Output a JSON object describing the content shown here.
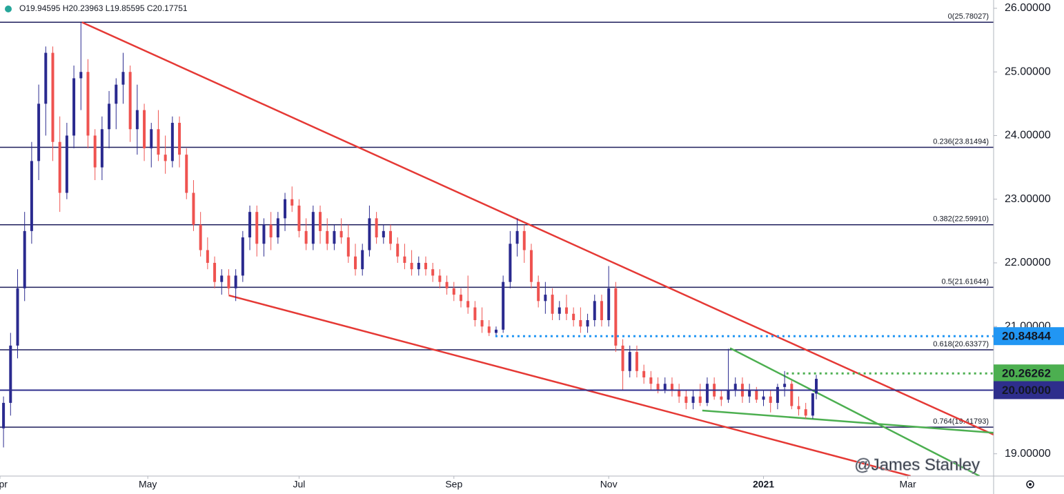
{
  "chart_data": {
    "type": "candlestick",
    "header": "O19.94595 H20.23963 L19.85595 C20.17751",
    "watermark": "@James Stanley",
    "up_color": "#2a2a8f",
    "down_color": "#ef5350",
    "xlim": [
      0,
      282.4
    ],
    "ylim": [
      18.65,
      26.13
    ],
    "xticks": [
      {
        "value": 0,
        "label": "Apr"
      },
      {
        "value": 42,
        "label": "May"
      },
      {
        "value": 85,
        "label": "Jul"
      },
      {
        "value": 129,
        "label": "Sep"
      },
      {
        "value": 173,
        "label": "Nov"
      },
      {
        "value": 217,
        "label": "2021"
      },
      {
        "value": 258,
        "label": "Mar"
      }
    ],
    "yticks": [
      {
        "value": 19,
        "label": "19.00000"
      },
      {
        "value": 20,
        "label": "20.00000"
      },
      {
        "value": 21,
        "label": "21.00000"
      },
      {
        "value": 22,
        "label": "22.00000"
      },
      {
        "value": 23,
        "label": "23.00000"
      },
      {
        "value": 24,
        "label": "24.00000"
      },
      {
        "value": 25,
        "label": "25.00000"
      },
      {
        "value": 26,
        "label": "26.00000"
      }
    ],
    "fib_levels": [
      {
        "value": 25.78027,
        "label": "0(25.78027)"
      },
      {
        "value": 23.81494,
        "label": "0.236(23.81494)"
      },
      {
        "value": 22.5991,
        "label": "0.382(22.59910)"
      },
      {
        "value": 21.61644,
        "label": "0.5(21.61644)"
      },
      {
        "value": 20.63377,
        "label": "0.618(20.63377)"
      },
      {
        "value": 19.41793,
        "label": "0.764(19.41793)"
      }
    ],
    "fib_color": "#1c1c5a",
    "levels": [
      {
        "value": 20.84844,
        "label": "20.84844",
        "color": "#2196f3",
        "dotted": true,
        "start": 140.8
      },
      {
        "value": 20.26262,
        "label": "20.26262",
        "color": "#4caf50",
        "dotted": true,
        "start": 223.5
      },
      {
        "value": 20,
        "label": "20.00000",
        "color": "#2e2e8c",
        "dotted": false,
        "start": 0
      }
    ],
    "trendlines": [
      {
        "color": "#e53935",
        "points": [
          [
            23.3,
            25.78
          ],
          [
            282.4,
            19.3
          ]
        ]
      },
      {
        "color": "#e53935",
        "points": [
          [
            65,
            21.49
          ],
          [
            258.8,
            18.65
          ]
        ]
      },
      {
        "color": "#4caf50",
        "points": [
          [
            207.5,
            20.66
          ],
          [
            278.4,
            18.65
          ]
        ]
      },
      {
        "color": "#4caf50",
        "points": [
          [
            199.6,
            19.68
          ],
          [
            282.4,
            19.33
          ]
        ]
      }
    ],
    "candles": [
      [
        1,
        19.4,
        19.9,
        19.1,
        19.8
      ],
      [
        3,
        19.8,
        20.9,
        19.6,
        20.7
      ],
      [
        5,
        20.7,
        21.9,
        20.5,
        21.6
      ],
      [
        7,
        21.6,
        22.8,
        21.4,
        22.5
      ],
      [
        9,
        22.5,
        23.9,
        22.3,
        23.6
      ],
      [
        11,
        23.6,
        24.8,
        23.3,
        24.5
      ],
      [
        13,
        24.5,
        25.4,
        24.0,
        25.3
      ],
      [
        15,
        25.3,
        25.4,
        23.6,
        23.9
      ],
      [
        17,
        23.9,
        24.3,
        22.8,
        23.1
      ],
      [
        19,
        23.1,
        24.2,
        23.0,
        24.0
      ],
      [
        21,
        24.0,
        25.1,
        23.8,
        24.9
      ],
      [
        23,
        24.9,
        25.78,
        24.4,
        25.0
      ],
      [
        25,
        25.0,
        25.2,
        23.8,
        24.0
      ],
      [
        27,
        24.0,
        24.1,
        23.3,
        23.5
      ],
      [
        29,
        23.5,
        24.3,
        23.3,
        24.1
      ],
      [
        31,
        24.1,
        24.7,
        23.8,
        24.5
      ],
      [
        33,
        24.5,
        24.9,
        24.1,
        24.8
      ],
      [
        35,
        24.8,
        25.3,
        24.5,
        25.0
      ],
      [
        37,
        25.0,
        25.1,
        23.9,
        24.1
      ],
      [
        39,
        24.1,
        24.8,
        23.7,
        24.4
      ],
      [
        41,
        24.4,
        24.5,
        23.6,
        23.8
      ],
      [
        43,
        23.8,
        24.2,
        23.5,
        24.1
      ],
      [
        45,
        24.1,
        24.4,
        23.6,
        23.7
      ],
      [
        47,
        23.7,
        24.0,
        23.4,
        23.6
      ],
      [
        49,
        23.6,
        24.3,
        23.5,
        24.2
      ],
      [
        51,
        24.2,
        24.3,
        23.5,
        23.7
      ],
      [
        53,
        23.7,
        23.8,
        23.0,
        23.1
      ],
      [
        55,
        23.1,
        23.3,
        22.5,
        22.6
      ],
      [
        57,
        22.6,
        22.8,
        22.1,
        22.2
      ],
      [
        59,
        22.2,
        22.4,
        21.9,
        22.0
      ],
      [
        61,
        22.0,
        22.1,
        21.6,
        21.7
      ],
      [
        63,
        21.7,
        21.9,
        21.5,
        21.8
      ],
      [
        65,
        21.8,
        21.9,
        21.5,
        21.6
      ],
      [
        67,
        21.6,
        21.9,
        21.4,
        21.8
      ],
      [
        69,
        21.8,
        22.5,
        21.7,
        22.4
      ],
      [
        71,
        22.4,
        22.9,
        22.2,
        22.8
      ],
      [
        73,
        22.8,
        22.9,
        22.1,
        22.3
      ],
      [
        75,
        22.3,
        22.7,
        22.1,
        22.6
      ],
      [
        77,
        22.6,
        22.8,
        22.2,
        22.4
      ],
      [
        79,
        22.4,
        22.8,
        22.3,
        22.7
      ],
      [
        81,
        22.7,
        23.1,
        22.5,
        23.0
      ],
      [
        83,
        23.0,
        23.2,
        22.8,
        22.9
      ],
      [
        85,
        22.9,
        23.0,
        22.4,
        22.5
      ],
      [
        87,
        22.5,
        22.7,
        22.2,
        22.3
      ],
      [
        89,
        22.3,
        22.9,
        22.2,
        22.8
      ],
      [
        91,
        22.8,
        22.9,
        22.3,
        22.5
      ],
      [
        93,
        22.5,
        22.7,
        22.2,
        22.3
      ],
      [
        95,
        22.3,
        22.6,
        22.2,
        22.5
      ],
      [
        97,
        22.5,
        22.7,
        22.3,
        22.4
      ],
      [
        99,
        22.4,
        22.6,
        22.0,
        22.1
      ],
      [
        101,
        22.1,
        22.3,
        21.8,
        21.9
      ],
      [
        103,
        21.9,
        22.3,
        21.8,
        22.2
      ],
      [
        105,
        22.2,
        22.9,
        22.1,
        22.7
      ],
      [
        107,
        22.7,
        22.8,
        22.3,
        22.4
      ],
      [
        109,
        22.4,
        22.6,
        22.3,
        22.5
      ],
      [
        111,
        22.5,
        22.6,
        22.2,
        22.3
      ],
      [
        113,
        22.3,
        22.4,
        22.0,
        22.1
      ],
      [
        115,
        22.1,
        22.3,
        21.9,
        22.0
      ],
      [
        117,
        22.0,
        22.2,
        21.8,
        21.9
      ],
      [
        119,
        21.9,
        22.1,
        21.8,
        22.0
      ],
      [
        121,
        22.0,
        22.1,
        21.8,
        21.9
      ],
      [
        123,
        21.9,
        22.0,
        21.7,
        21.8
      ],
      [
        125,
        21.8,
        21.9,
        21.6,
        21.7
      ],
      [
        127,
        21.7,
        21.8,
        21.5,
        21.6
      ],
      [
        129,
        21.6,
        21.7,
        21.4,
        21.5
      ],
      [
        131,
        21.5,
        21.6,
        21.3,
        21.4
      ],
      [
        133,
        21.4,
        21.8,
        21.2,
        21.3
      ],
      [
        135,
        21.3,
        21.4,
        21.0,
        21.1
      ],
      [
        137,
        21.1,
        21.3,
        20.9,
        21.0
      ],
      [
        139,
        21.0,
        21.1,
        20.85,
        20.9
      ],
      [
        141,
        20.9,
        21.0,
        20.85,
        20.95
      ],
      [
        143,
        20.95,
        21.8,
        20.9,
        21.7
      ],
      [
        145,
        21.7,
        22.5,
        21.6,
        22.3
      ],
      [
        147,
        22.3,
        22.7,
        22.1,
        22.5
      ],
      [
        149,
        22.5,
        22.6,
        22.0,
        22.2
      ],
      [
        151,
        22.2,
        22.3,
        21.6,
        21.7
      ],
      [
        153,
        21.7,
        21.8,
        21.3,
        21.4
      ],
      [
        155,
        21.4,
        21.7,
        21.2,
        21.5
      ],
      [
        157,
        21.5,
        21.6,
        21.1,
        21.2
      ],
      [
        159,
        21.2,
        21.4,
        21.1,
        21.3
      ],
      [
        161,
        21.3,
        21.5,
        21.1,
        21.2
      ],
      [
        163,
        21.2,
        21.3,
        21.0,
        21.1
      ],
      [
        165,
        21.1,
        21.3,
        20.9,
        21.0
      ],
      [
        167,
        21.0,
        21.2,
        20.9,
        21.1
      ],
      [
        169,
        21.1,
        21.5,
        21.0,
        21.4
      ],
      [
        171,
        21.4,
        21.5,
        21.0,
        21.1
      ],
      [
        173,
        21.1,
        21.95,
        21.0,
        21.6
      ],
      [
        175,
        21.6,
        21.7,
        20.6,
        20.7
      ],
      [
        177,
        20.7,
        20.8,
        20.0,
        20.3
      ],
      [
        179,
        20.3,
        20.7,
        20.2,
        20.6
      ],
      [
        181,
        20.6,
        20.7,
        20.2,
        20.3
      ],
      [
        183,
        20.3,
        20.4,
        20.1,
        20.2
      ],
      [
        185,
        20.2,
        20.3,
        20.0,
        20.1
      ],
      [
        187,
        20.1,
        20.2,
        19.95,
        20.0
      ],
      [
        189,
        20.0,
        20.2,
        19.95,
        20.1
      ],
      [
        191,
        20.1,
        20.2,
        19.9,
        20.0
      ],
      [
        193,
        20.0,
        20.1,
        19.8,
        19.9
      ],
      [
        195,
        19.9,
        20.0,
        19.7,
        19.8
      ],
      [
        197,
        19.8,
        20.0,
        19.7,
        19.9
      ],
      [
        199,
        19.9,
        20.1,
        19.75,
        19.8
      ],
      [
        201,
        19.8,
        20.2,
        19.75,
        20.1
      ],
      [
        203,
        20.1,
        20.2,
        19.85,
        19.9
      ],
      [
        205,
        19.9,
        20.0,
        19.75,
        19.85
      ],
      [
        207,
        19.85,
        20.65,
        19.8,
        20.0
      ],
      [
        209,
        20.0,
        20.2,
        19.9,
        20.1
      ],
      [
        211,
        20.1,
        20.2,
        19.8,
        19.9
      ],
      [
        213,
        19.9,
        20.1,
        19.8,
        20.0
      ],
      [
        215,
        20.0,
        20.05,
        19.8,
        19.85
      ],
      [
        217,
        19.85,
        20.0,
        19.75,
        19.9
      ],
      [
        219,
        19.9,
        20.0,
        19.65,
        19.8
      ],
      [
        221,
        19.8,
        20.1,
        19.7,
        20.05
      ],
      [
        223,
        20.05,
        20.3,
        19.9,
        20.1
      ],
      [
        225,
        20.1,
        20.15,
        19.7,
        19.75
      ],
      [
        227,
        19.75,
        19.9,
        19.6,
        19.7
      ],
      [
        229,
        19.7,
        19.8,
        19.55,
        19.6
      ],
      [
        231,
        19.6,
        19.95,
        19.55,
        19.95
      ],
      [
        232,
        19.94595,
        20.23963,
        19.85595,
        20.17751
      ]
    ]
  }
}
